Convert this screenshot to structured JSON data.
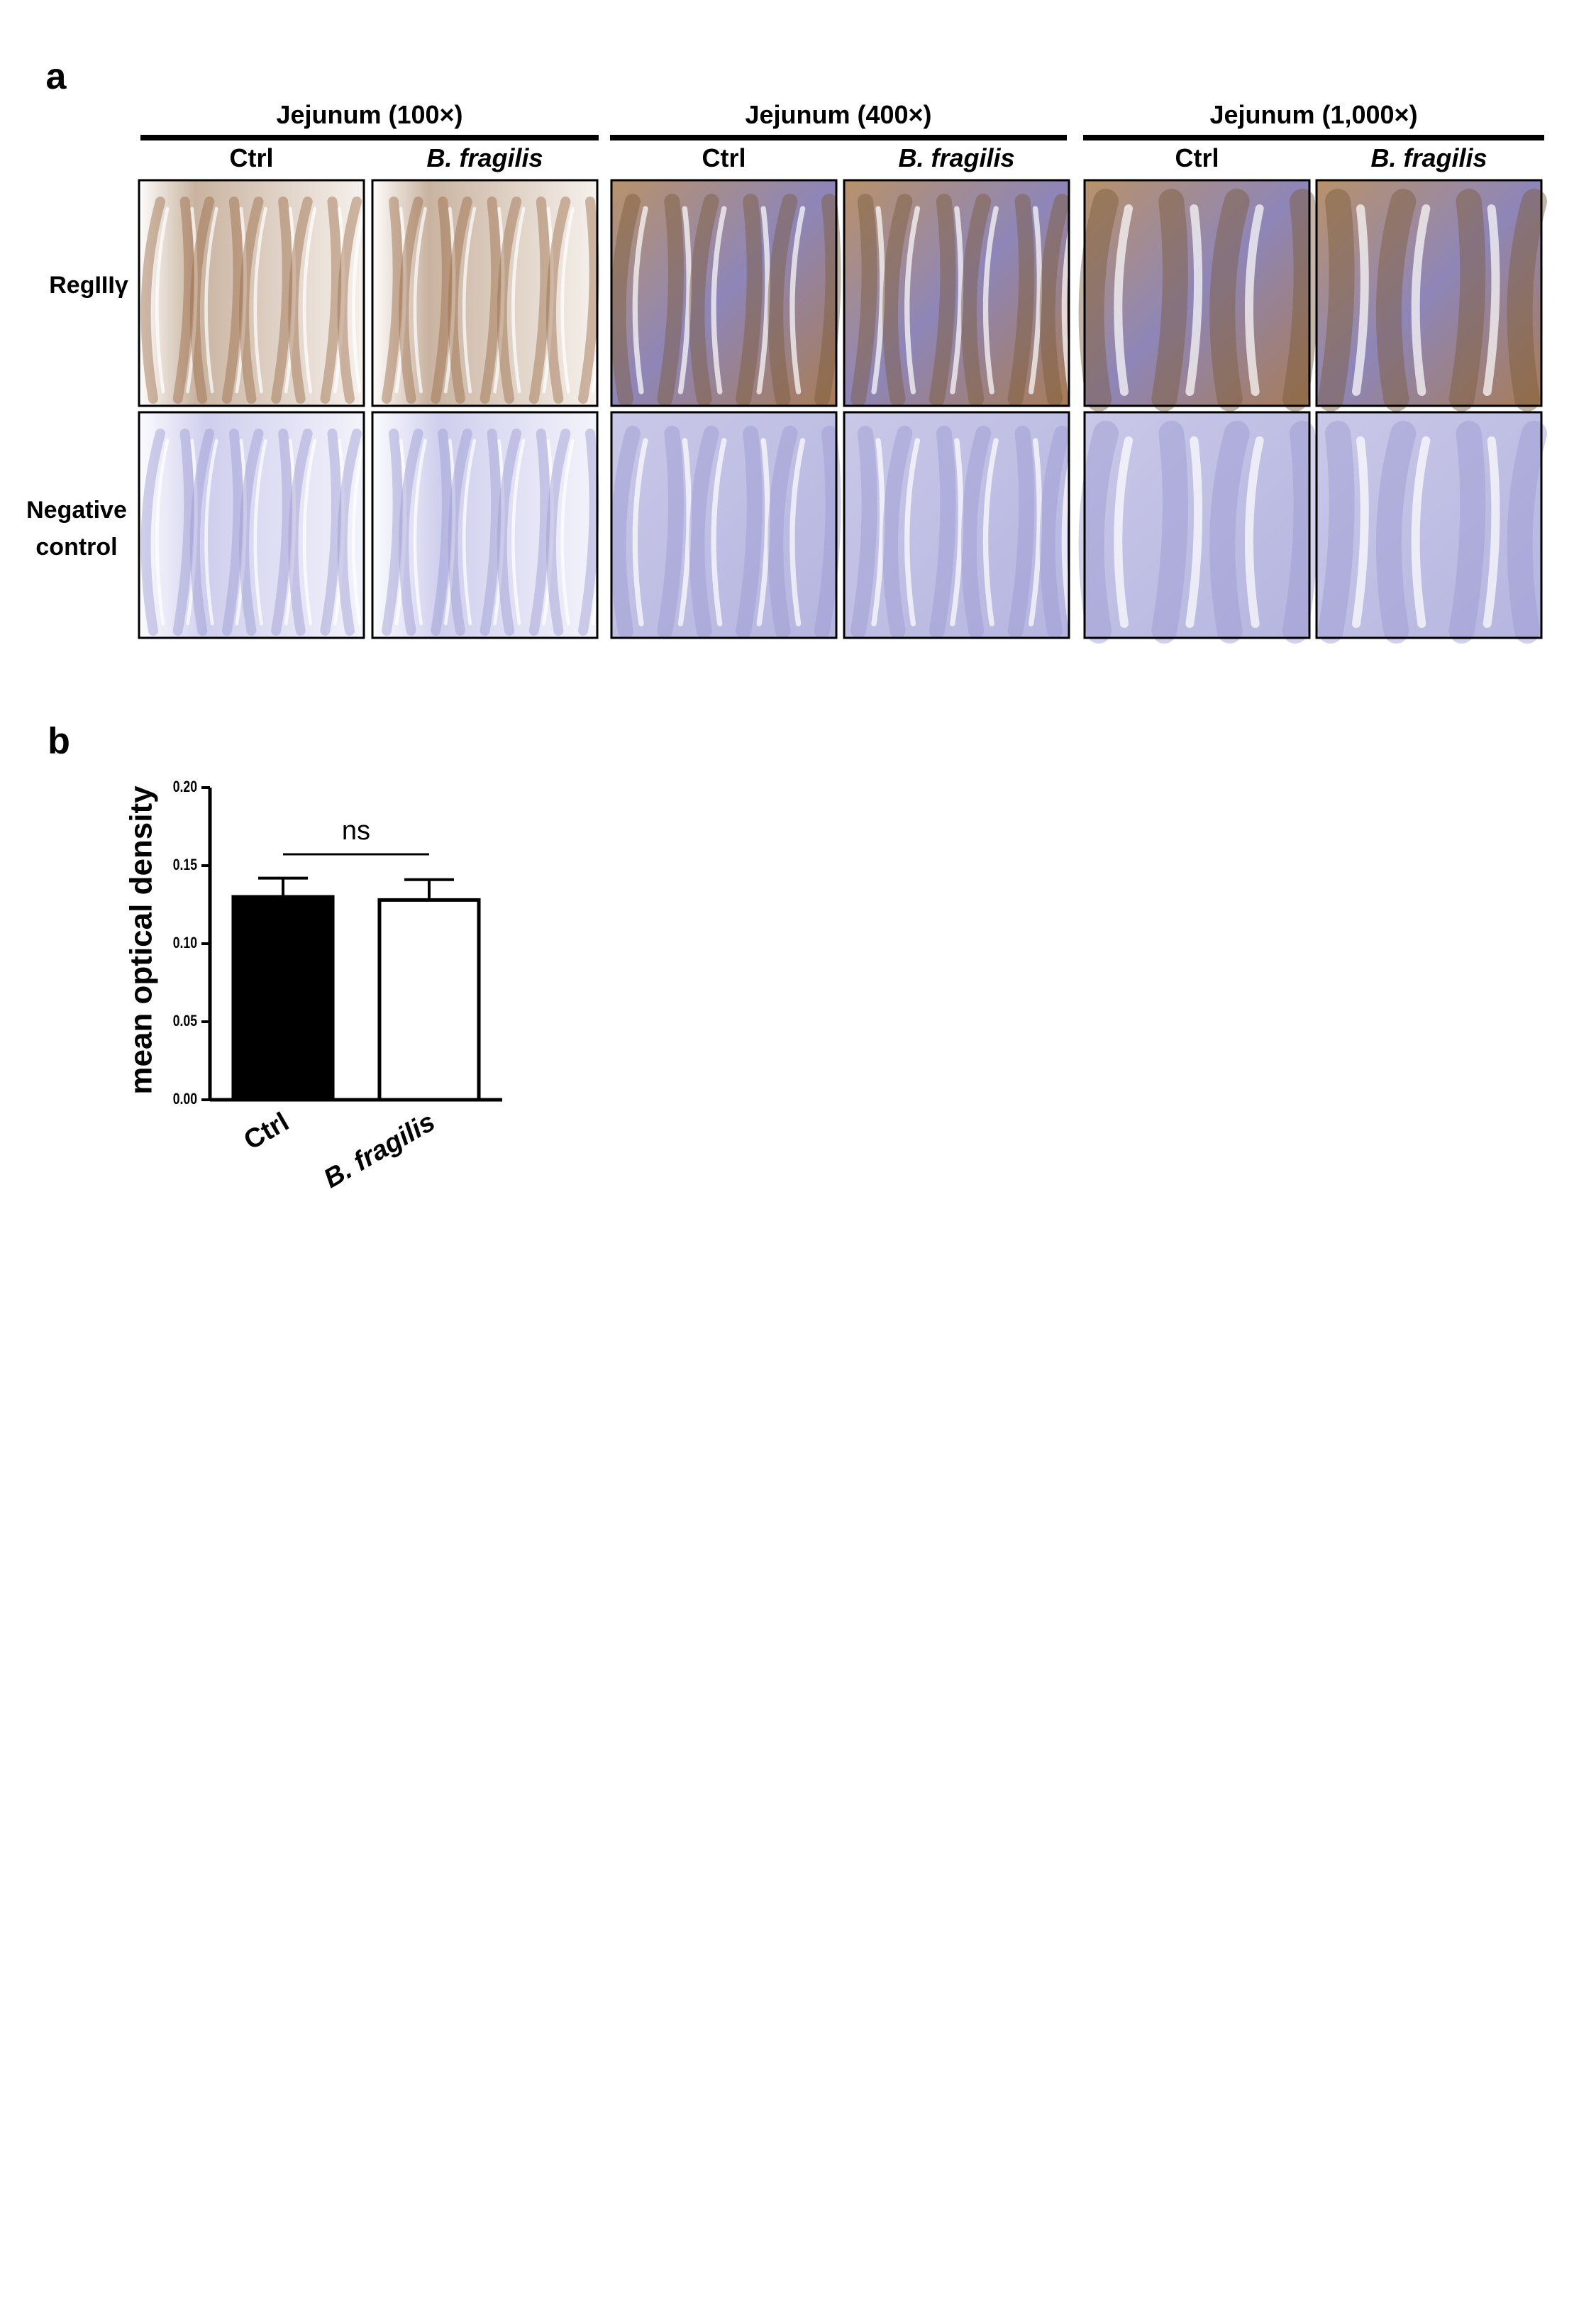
{
  "panel_a": {
    "label": "a",
    "groups": [
      {
        "title": "Jejunum (100×)",
        "columns": [
          "Ctrl",
          "B. fragilis"
        ]
      },
      {
        "title": "Jejunum (400×)",
        "columns": [
          "Ctrl",
          "B. fragilis"
        ]
      },
      {
        "title": "Jejunum (1,000×)",
        "columns": [
          "Ctrl",
          "B. fragilis"
        ]
      }
    ],
    "rows": [
      "RegIIIγ",
      "Negative control"
    ]
  },
  "chart_data": {
    "type": "bar",
    "label": "b",
    "categories": [
      "Ctrl",
      "B. fragilis"
    ],
    "values": [
      0.13,
      0.128
    ],
    "errors": [
      0.012,
      0.013
    ],
    "colors": [
      "#000000",
      "#ffffff"
    ],
    "ylabel": "mean optical density",
    "annotation": "ns",
    "ylim": [
      0,
      0.2
    ],
    "yticks": [
      {
        "value": 0,
        "label": "0.00"
      },
      {
        "value": 0.05,
        "label": "0.05"
      },
      {
        "value": 0.1,
        "label": "0.10"
      },
      {
        "value": 0.15,
        "label": "0.15"
      },
      {
        "value": 0.2,
        "label": "0.20"
      }
    ]
  }
}
